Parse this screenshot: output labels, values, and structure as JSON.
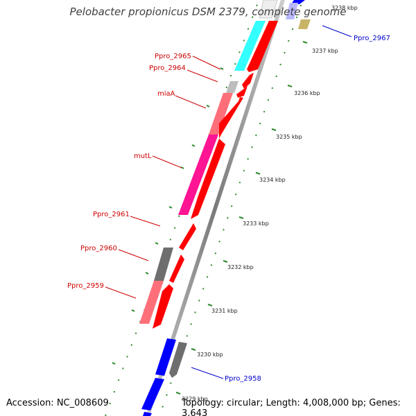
{
  "title": "Pelobacter propionicus DSM 2379, complete genome",
  "footer": {
    "accession": "Accession: NC_008609",
    "topology": "Topology: circular; Length: 4,008,000 bp; Genes: 3,643"
  },
  "kbp_ticks": [
    "3238 kbp",
    "3237 kbp",
    "3236 kbp",
    "3235 kbp",
    "3234 kbp",
    "3233 kbp",
    "3232 kbp",
    "3231 kbp",
    "3230 kbp",
    "3229 kbp"
  ],
  "gene_labels": [
    {
      "text": "Ppro_2967",
      "color": "#0000cc"
    },
    {
      "text": "Ppro_2965",
      "color": "#cc0000"
    },
    {
      "text": "Ppro_2964",
      "color": "#cc0000"
    },
    {
      "text": "miaA",
      "color": "#cc0000"
    },
    {
      "text": "mutL",
      "color": "#cc0000"
    },
    {
      "text": "Ppro_2961",
      "color": "#cc0000"
    },
    {
      "text": "Ppro_2960",
      "color": "#cc0000"
    },
    {
      "text": "Ppro_2959",
      "color": "#cc0000"
    },
    {
      "text": "Ppro_2958",
      "color": "#0000cc"
    }
  ],
  "colors": {
    "red": "#ff0000",
    "blue": "#0000ff",
    "cyan": "#33ffff",
    "pink": "#ff6f7a",
    "magenta": "#ff1493",
    "gray": "#6e6e6e",
    "lightgray": "#bdbdbd",
    "olive": "#c8b464",
    "lavender": "#b8b8ff",
    "backbone": "#8c8c8c",
    "tick": "#2a8a2a"
  }
}
